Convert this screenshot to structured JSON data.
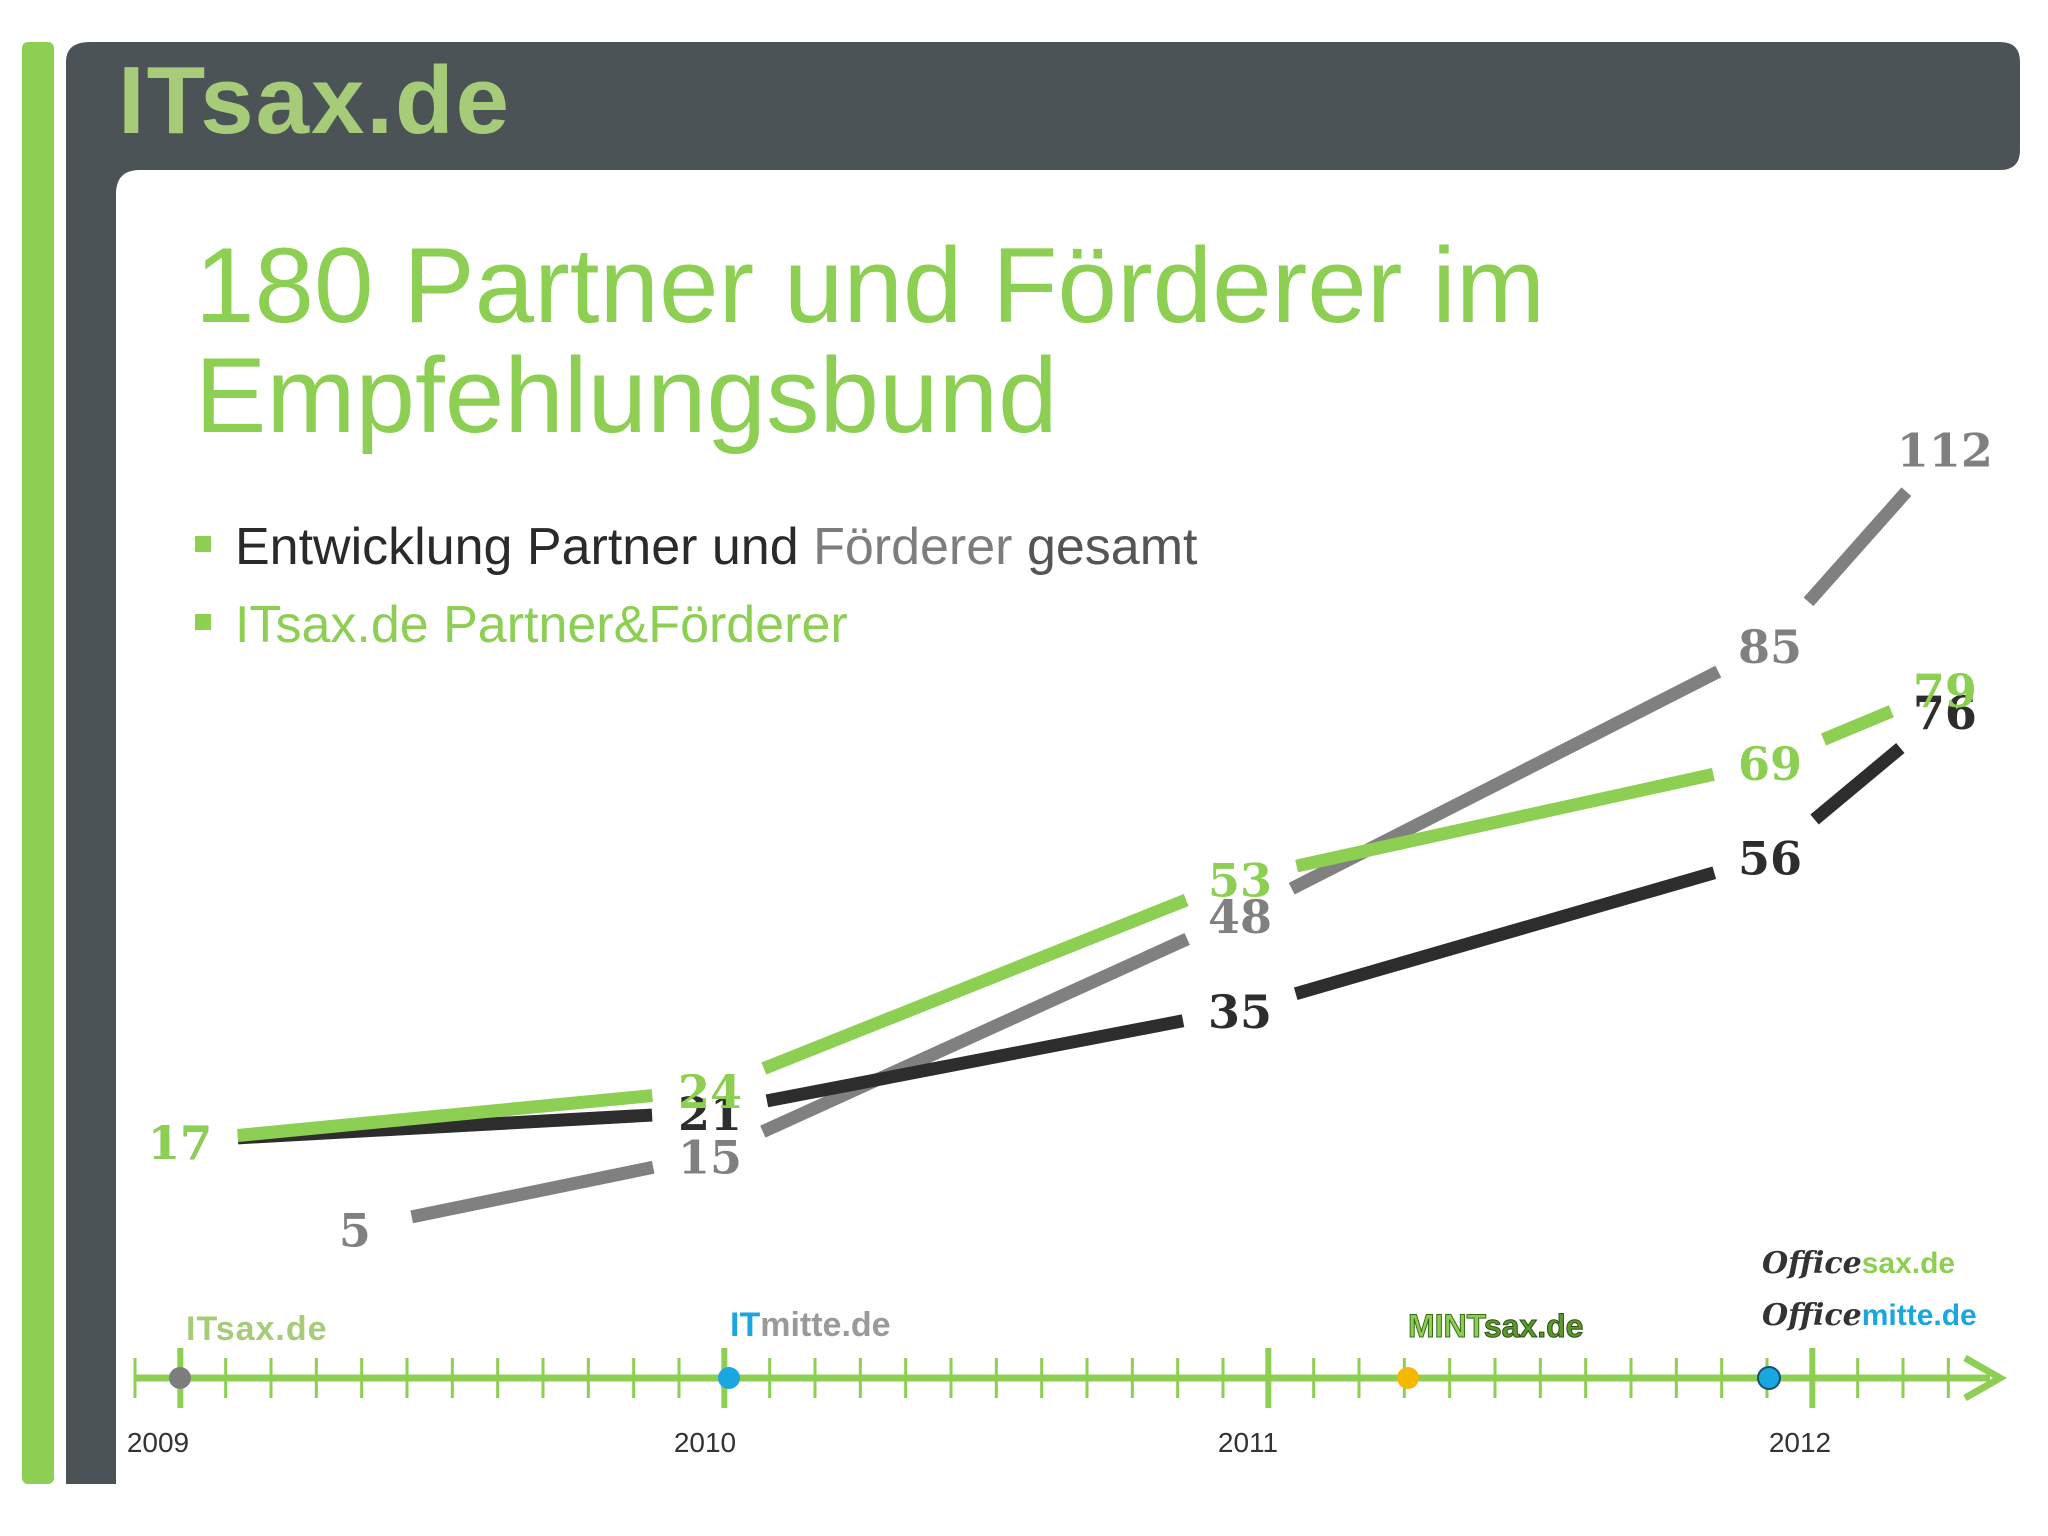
{
  "header": {
    "logo_text": "ITsax.de"
  },
  "slide": {
    "title": "180 Partner und Förderer im Empfehlungsbund",
    "legend": {
      "line1_part1": "Entwicklung Partner und ",
      "line1_part2": "Förderer",
      "line1_part3": " gesamt",
      "line2": "ITsax.de Partner&Förderer"
    }
  },
  "timeline": {
    "years": [
      "2009",
      "2010",
      "2011",
      "2012"
    ],
    "milestones": [
      {
        "name": "ITsax.de",
        "color": "#7d7d7d"
      },
      {
        "name": "ITmitte.de",
        "color": "#1aa7e0"
      },
      {
        "name": "MINTsax.de",
        "color": "#f5b800"
      },
      {
        "name": "Officesax.de / Officemitte.de",
        "color": "#1aa7e0"
      }
    ],
    "logos": {
      "itsax": "ITsax.de",
      "itmitte_a": "IT",
      "itmitte_b": "mitte.de",
      "mintsax_a": "MINT",
      "mintsax_b": "sax.de",
      "officesax_a": "Office",
      "officesax_b": "sax.de",
      "officemitte_a": "Office",
      "officemitte_b": "mitte.de"
    }
  },
  "chart_data": {
    "type": "line",
    "x": [
      "2009",
      "2010",
      "2011",
      "2012"
    ],
    "series": [
      {
        "name": "Förderer",
        "color": "#808080",
        "x": [
          2009.33,
          2010,
          2011,
          2012,
          2012.33
        ],
        "values": [
          5,
          15,
          48,
          85,
          112
        ]
      },
      {
        "name": "Partner",
        "color": "#2d2d2d",
        "x": [
          2009,
          2010,
          2011,
          2012,
          2012.33
        ],
        "values": [
          17,
          21,
          35,
          56,
          76
        ]
      },
      {
        "name": "ITsax.de Partner&Förderer",
        "color": "#8ccf52",
        "x": [
          2009,
          2010,
          2011,
          2012,
          2012.33
        ],
        "values": [
          17,
          24,
          53,
          69,
          79
        ]
      }
    ],
    "grid": false,
    "legend": "top-left"
  }
}
